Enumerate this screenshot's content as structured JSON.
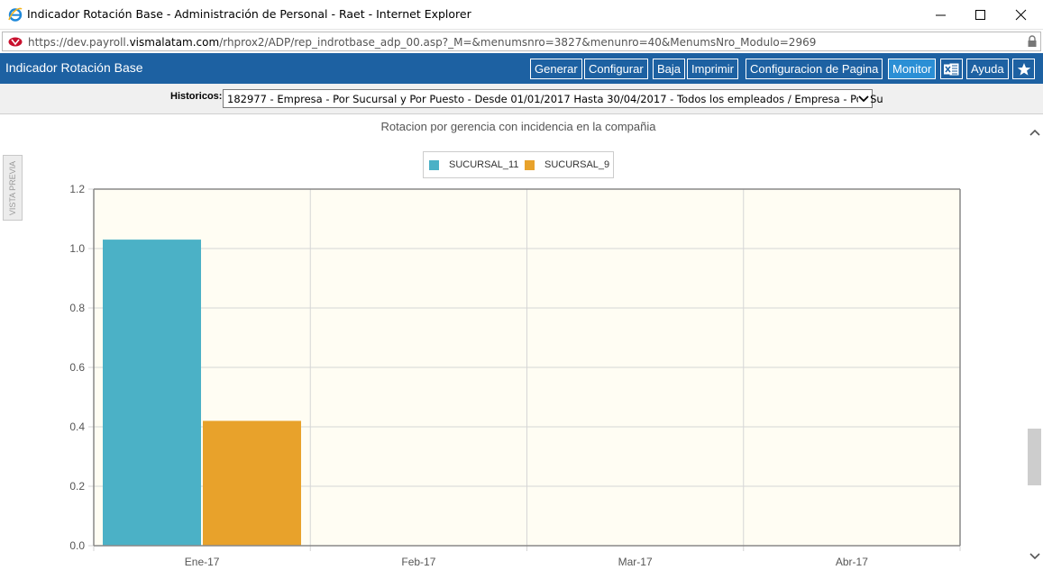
{
  "window": {
    "title": "Indicador Rotación Base - Administración de Personal - Raet - Internet Explorer",
    "url_prefix": "https://dev.payroll.",
    "url_domain": "vismalatam.com",
    "url_path": "/rhprox2/ADP/rep_indrotbase_adp_00.asp?_M=&menumsnro=3827&menunro=40&MenumsNro_Modulo=2969"
  },
  "header": {
    "title": "Indicador Rotación Base",
    "buttons": {
      "generar": "Generar",
      "configurar": "Configurar",
      "baja": "Baja",
      "imprimir": "Imprimir",
      "config_pagina": "Configuracion de Pagina",
      "monitor": "Monitor",
      "excel_icon": "excel-icon",
      "ayuda": "Ayuda",
      "favorite_icon": "star-icon"
    },
    "active_button": "Monitor",
    "color": "#1d61a2",
    "active_color": "#2b8fd5"
  },
  "historicos": {
    "label": "Historicos:",
    "selected": "182977 - Empresa - Por Sucursal y Por Puesto - Desde 01/01/2017 Hasta 30/04/2017 - Todos los empleados / Empresa - Por Su"
  },
  "sidebar_tab": {
    "label": "VISTA PREVIA"
  },
  "chart_data": {
    "type": "bar",
    "title": "Rotacion por gerencia con incidencia en la compañia",
    "categories": [
      "Ene-17",
      "Feb-17",
      "Mar-17",
      "Abr-17"
    ],
    "series": [
      {
        "name": "SUCURSAL_11",
        "color": "#4bb1c6",
        "values": [
          1.03,
          null,
          null,
          null
        ]
      },
      {
        "name": "SUCURSAL_9",
        "color": "#e8a22b",
        "values": [
          0.42,
          null,
          null,
          null
        ]
      }
    ],
    "ylim": [
      0,
      1.2
    ],
    "yticks": [
      "0.0",
      "0.2",
      "0.4",
      "0.6",
      "0.8",
      "1.0",
      "1.2"
    ],
    "xlabel": "",
    "ylabel": "",
    "legend": "top-center",
    "grid": true,
    "plot_background": "#fffdf3"
  }
}
